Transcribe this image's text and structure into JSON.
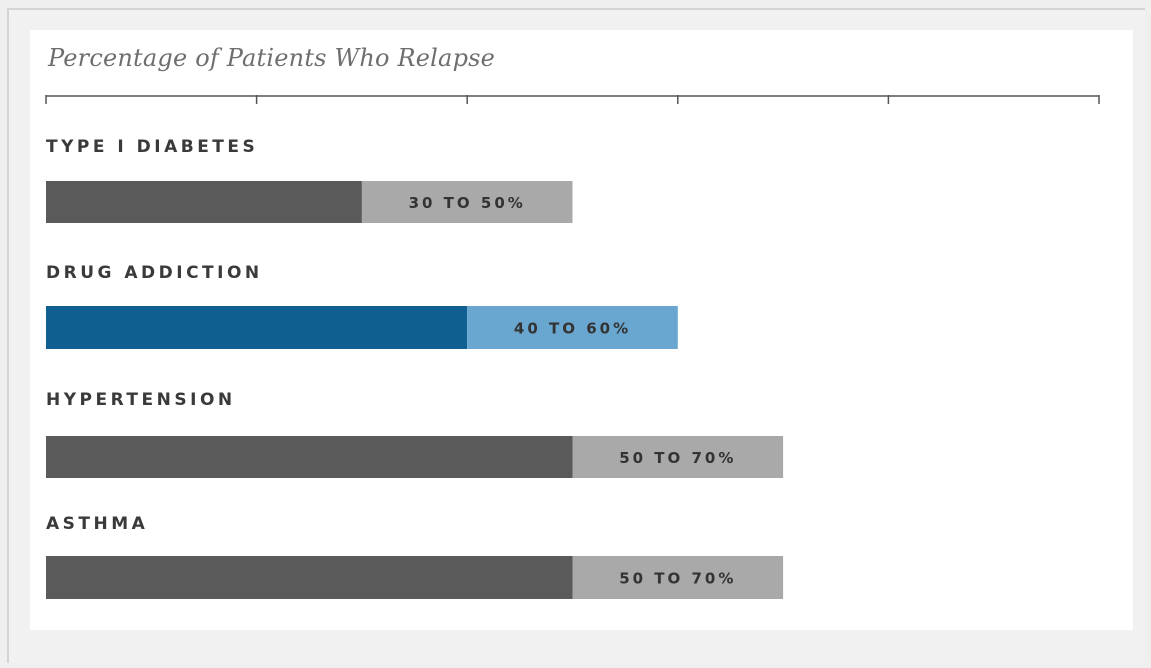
{
  "chart_data": {
    "type": "bar",
    "title": "Percentage of Patients Who Relapse",
    "xlim": [
      0,
      100
    ],
    "categories": [
      "TYPE I DIABETES",
      "DRUG ADDICTION",
      "HYPERTENSION",
      "ASTHMA"
    ],
    "ranges": [
      {
        "low": 30,
        "high": 50,
        "label": "30 TO 50%",
        "dark_color": "#5a5a5a",
        "light_color": "#a9a9a9"
      },
      {
        "low": 40,
        "high": 60,
        "label": "40 TO 60%",
        "dark_color": "#0f5f91",
        "light_color": "#6aa7d0"
      },
      {
        "low": 50,
        "high": 70,
        "label": "50 TO 70%",
        "dark_color": "#5a5a5a",
        "light_color": "#a9a9a9"
      },
      {
        "low": 50,
        "high": 70,
        "label": "50 TO 70%",
        "dark_color": "#5a5a5a",
        "light_color": "#a9a9a9"
      }
    ],
    "axis_ticks": [
      0,
      20,
      40,
      60,
      80,
      100
    ],
    "tick_labels_shown": false,
    "grid": false
  }
}
